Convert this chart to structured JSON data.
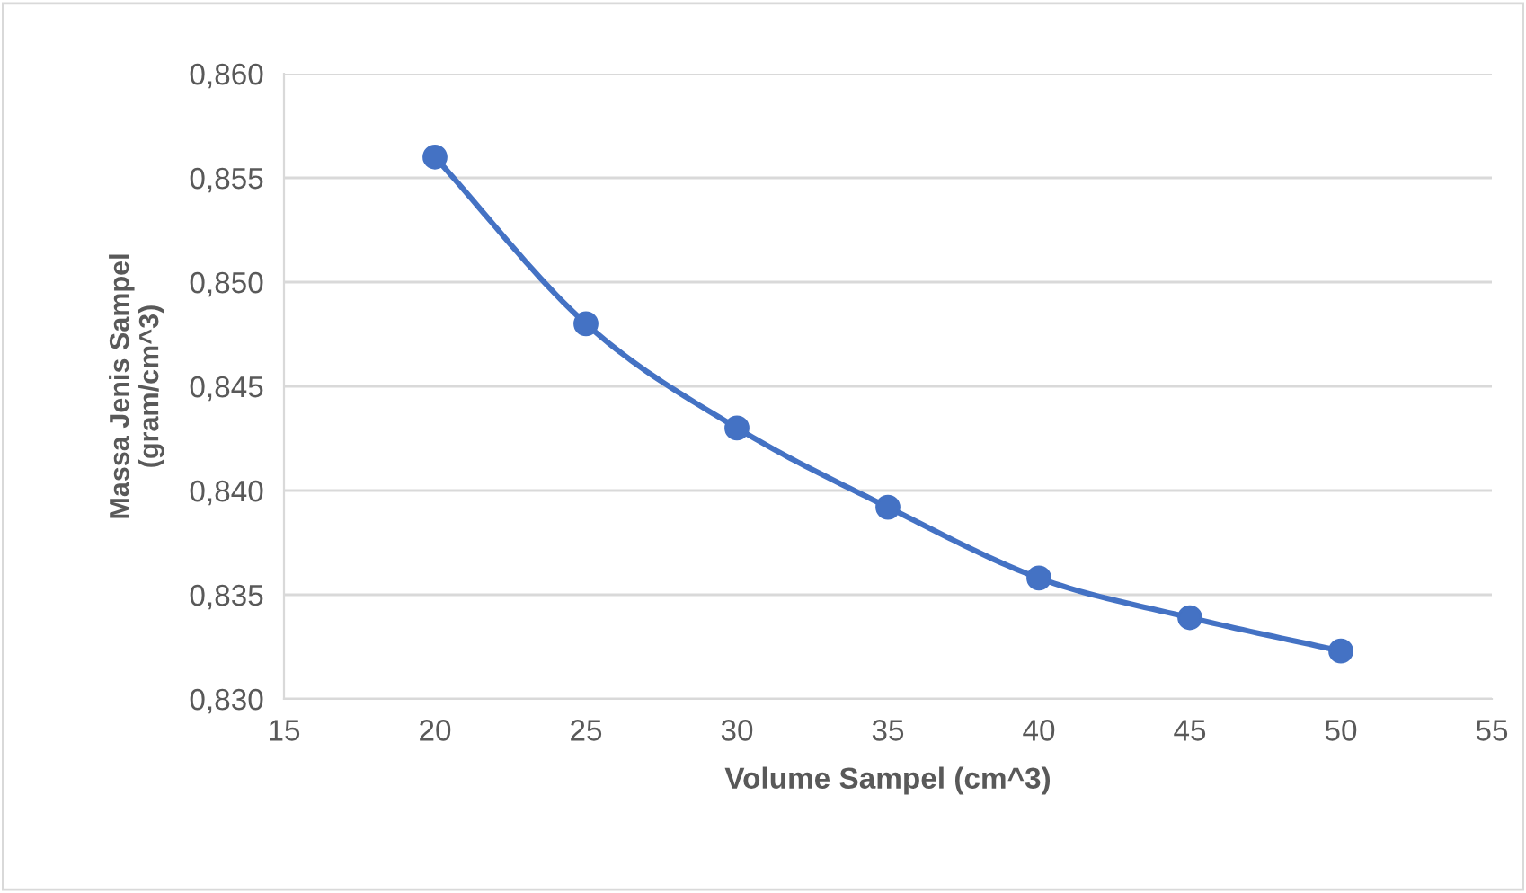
{
  "chart_data": {
    "type": "line",
    "xlabel": "Volume Sampel (cm^3)",
    "ylabel": "Massa Jenis Sampel\n(gram/cm^3)",
    "x": [
      20,
      25,
      30,
      35,
      40,
      45,
      50
    ],
    "series": [
      {
        "color": "#4472c4",
        "values": [
          0.856,
          0.848,
          0.843,
          0.8392,
          0.8358,
          0.8339,
          0.8323
        ]
      }
    ],
    "xlim": [
      15,
      55
    ],
    "xticks": [
      15,
      20,
      25,
      30,
      35,
      40,
      45,
      50,
      55
    ],
    "ylim": [
      0.83,
      0.86
    ],
    "yticks": [
      {
        "value": 0.83,
        "label": "0,830"
      },
      {
        "value": 0.835,
        "label": "0,835"
      },
      {
        "value": 0.84,
        "label": "0,840"
      },
      {
        "value": 0.845,
        "label": "0,845"
      },
      {
        "value": 0.85,
        "label": "0,850"
      },
      {
        "value": 0.855,
        "label": "0,855"
      },
      {
        "value": 0.86,
        "label": "0,860"
      }
    ],
    "grid": "y",
    "marker": "circle",
    "line_style": "solid",
    "legend": false
  }
}
